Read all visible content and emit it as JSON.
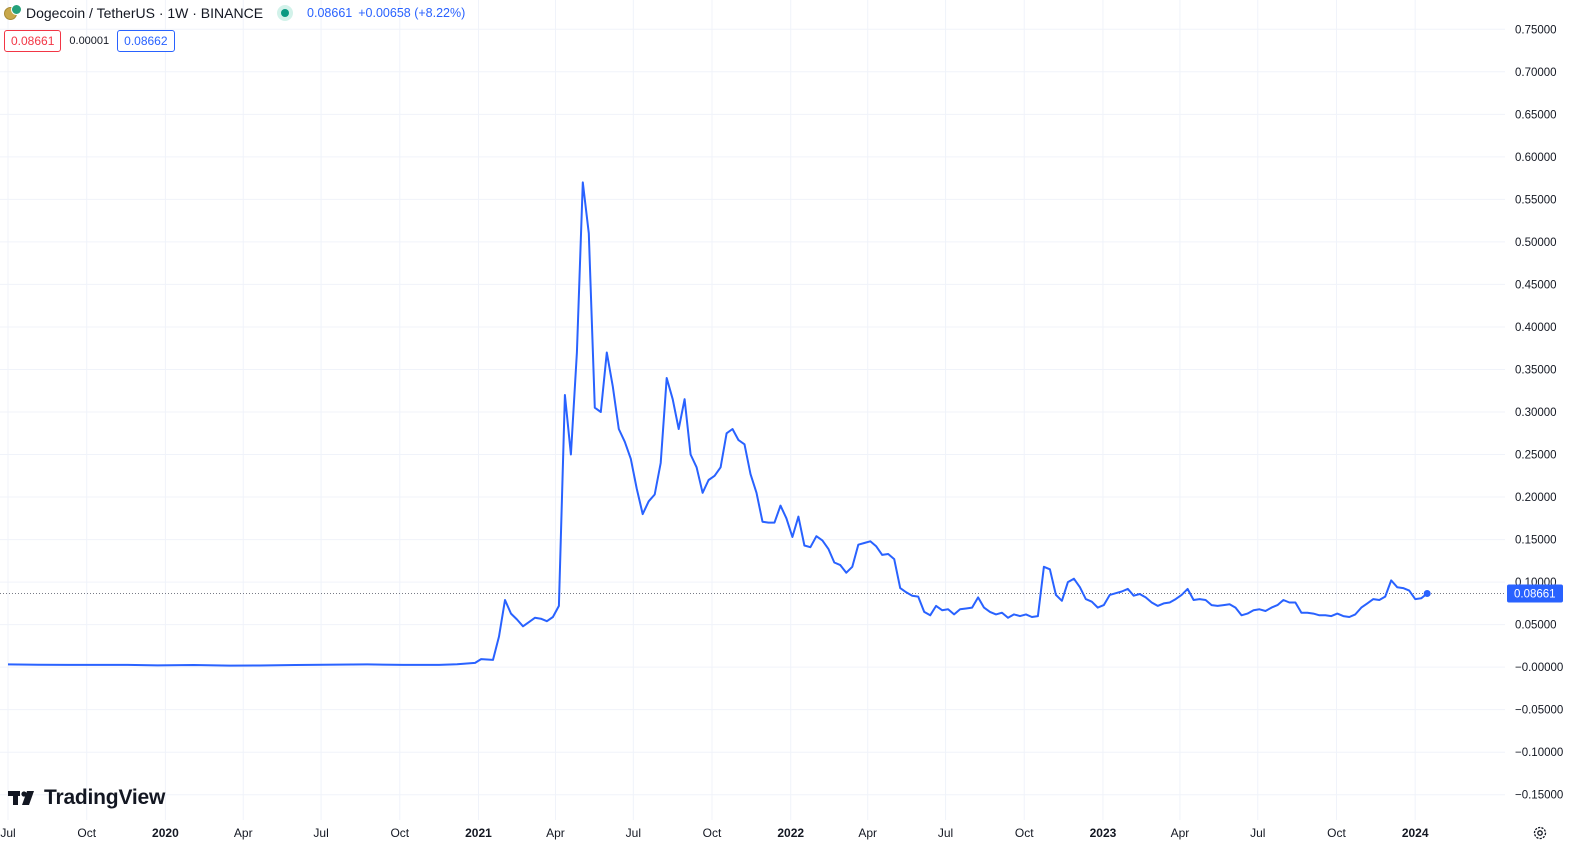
{
  "header": {
    "symbol": "Dogecoin / TetherUS · 1W · BINANCE",
    "last_value": "0.08661",
    "change": "+0.00658 (+8.22%)"
  },
  "quotes": {
    "bid": "0.08661",
    "spread": "0.00001",
    "ask": "0.08662"
  },
  "logo": {
    "text": "TradingView"
  },
  "icons": [
    "dogecoin-tether-icon",
    "market-status-icon",
    "tradingview-logo-icon",
    "settings-gear-icon"
  ],
  "colors": {
    "line": "#2962ff",
    "price_label_bg": "#2962ff",
    "bid": "#f23645",
    "ask": "#2962ff",
    "grid": "#f0f3fa"
  },
  "chart_data": {
    "type": "line",
    "title": "",
    "xlabel": "",
    "ylabel": "",
    "ylim": [
      -0.175,
      0.775
    ],
    "xlim": [
      "2019-07-01",
      "2024-04-15"
    ],
    "grid": true,
    "current_price_label": "0.08661",
    "current_price": 0.08661,
    "y_ticks": [
      {
        "value": 0.75,
        "label": "0.75000"
      },
      {
        "value": 0.7,
        "label": "0.70000"
      },
      {
        "value": 0.65,
        "label": "0.65000"
      },
      {
        "value": 0.6,
        "label": "0.60000"
      },
      {
        "value": 0.55,
        "label": "0.55000"
      },
      {
        "value": 0.5,
        "label": "0.50000"
      },
      {
        "value": 0.45,
        "label": "0.45000"
      },
      {
        "value": 0.4,
        "label": "0.40000"
      },
      {
        "value": 0.35,
        "label": "0.35000"
      },
      {
        "value": 0.3,
        "label": "0.30000"
      },
      {
        "value": 0.25,
        "label": "0.25000"
      },
      {
        "value": 0.2,
        "label": "0.20000"
      },
      {
        "value": 0.15,
        "label": "0.15000"
      },
      {
        "value": 0.1,
        "label": "0.10000"
      },
      {
        "value": 0.05,
        "label": "0.05000"
      },
      {
        "value": 0.0,
        "label": "−0.00000"
      },
      {
        "value": -0.05,
        "label": "−0.05000"
      },
      {
        "value": -0.1,
        "label": "−0.10000"
      },
      {
        "value": -0.15,
        "label": "−0.15000"
      }
    ],
    "x_ticks": [
      {
        "date": "2019-07-01",
        "label": "Jul",
        "bold": false
      },
      {
        "date": "2019-10-01",
        "label": "Oct",
        "bold": false
      },
      {
        "date": "2020-01-01",
        "label": "2020",
        "bold": true
      },
      {
        "date": "2020-04-01",
        "label": "Apr",
        "bold": false
      },
      {
        "date": "2020-07-01",
        "label": "Jul",
        "bold": false
      },
      {
        "date": "2020-10-01",
        "label": "Oct",
        "bold": false
      },
      {
        "date": "2021-01-01",
        "label": "2021",
        "bold": true
      },
      {
        "date": "2021-04-01",
        "label": "Apr",
        "bold": false
      },
      {
        "date": "2021-07-01",
        "label": "Jul",
        "bold": false
      },
      {
        "date": "2021-10-01",
        "label": "Oct",
        "bold": false
      },
      {
        "date": "2022-01-01",
        "label": "2022",
        "bold": true
      },
      {
        "date": "2022-04-01",
        "label": "Apr",
        "bold": false
      },
      {
        "date": "2022-07-01",
        "label": "Jul",
        "bold": false
      },
      {
        "date": "2022-10-01",
        "label": "Oct",
        "bold": false
      },
      {
        "date": "2023-01-01",
        "label": "2023",
        "bold": true
      },
      {
        "date": "2023-04-01",
        "label": "Apr",
        "bold": false
      },
      {
        "date": "2023-07-01",
        "label": "Jul",
        "bold": false
      },
      {
        "date": "2023-10-01",
        "label": "Oct",
        "bold": false
      },
      {
        "date": "2024-01-01",
        "label": "2024",
        "bold": true
      }
    ],
    "series": [
      {
        "points": [
          {
            "x": "2019-07-01",
            "y": 0.0032
          },
          {
            "x": "2019-08-05",
            "y": 0.0028
          },
          {
            "x": "2019-09-09",
            "y": 0.0026
          },
          {
            "x": "2019-10-14",
            "y": 0.0026
          },
          {
            "x": "2019-11-18",
            "y": 0.0027
          },
          {
            "x": "2019-12-23",
            "y": 0.0021
          },
          {
            "x": "2020-02-03",
            "y": 0.0025
          },
          {
            "x": "2020-03-16",
            "y": 0.0018
          },
          {
            "x": "2020-04-20",
            "y": 0.002
          },
          {
            "x": "2020-06-01",
            "y": 0.0025
          },
          {
            "x": "2020-07-20",
            "y": 0.003
          },
          {
            "x": "2020-08-24",
            "y": 0.0032
          },
          {
            "x": "2020-10-05",
            "y": 0.0026
          },
          {
            "x": "2020-11-16",
            "y": 0.0027
          },
          {
            "x": "2020-12-07",
            "y": 0.0035
          },
          {
            "x": "2020-12-28",
            "y": 0.005
          },
          {
            "x": "2021-01-04",
            "y": 0.0095
          },
          {
            "x": "2021-01-18",
            "y": 0.0085
          },
          {
            "x": "2021-01-25",
            "y": 0.036
          },
          {
            "x": "2021-02-01",
            "y": 0.079
          },
          {
            "x": "2021-02-08",
            "y": 0.063
          },
          {
            "x": "2021-02-15",
            "y": 0.056
          },
          {
            "x": "2021-02-22",
            "y": 0.048
          },
          {
            "x": "2021-03-01",
            "y": 0.053
          },
          {
            "x": "2021-03-08",
            "y": 0.058
          },
          {
            "x": "2021-03-15",
            "y": 0.057
          },
          {
            "x": "2021-03-22",
            "y": 0.054
          },
          {
            "x": "2021-03-29",
            "y": 0.059
          },
          {
            "x": "2021-04-05",
            "y": 0.072
          },
          {
            "x": "2021-04-12",
            "y": 0.32
          },
          {
            "x": "2021-04-19",
            "y": 0.25
          },
          {
            "x": "2021-04-26",
            "y": 0.37
          },
          {
            "x": "2021-05-03",
            "y": 0.57
          },
          {
            "x": "2021-05-10",
            "y": 0.51
          },
          {
            "x": "2021-05-17",
            "y": 0.305
          },
          {
            "x": "2021-05-24",
            "y": 0.3
          },
          {
            "x": "2021-05-31",
            "y": 0.37
          },
          {
            "x": "2021-06-07",
            "y": 0.33
          },
          {
            "x": "2021-06-14",
            "y": 0.28
          },
          {
            "x": "2021-06-21",
            "y": 0.265
          },
          {
            "x": "2021-06-28",
            "y": 0.245
          },
          {
            "x": "2021-07-05",
            "y": 0.21
          },
          {
            "x": "2021-07-12",
            "y": 0.18
          },
          {
            "x": "2021-07-19",
            "y": 0.195
          },
          {
            "x": "2021-07-26",
            "y": 0.203
          },
          {
            "x": "2021-08-02",
            "y": 0.24
          },
          {
            "x": "2021-08-09",
            "y": 0.34
          },
          {
            "x": "2021-08-16",
            "y": 0.315
          },
          {
            "x": "2021-08-23",
            "y": 0.28
          },
          {
            "x": "2021-08-30",
            "y": 0.315
          },
          {
            "x": "2021-09-06",
            "y": 0.25
          },
          {
            "x": "2021-09-13",
            "y": 0.235
          },
          {
            "x": "2021-09-20",
            "y": 0.205
          },
          {
            "x": "2021-09-27",
            "y": 0.22
          },
          {
            "x": "2021-10-04",
            "y": 0.225
          },
          {
            "x": "2021-10-11",
            "y": 0.235
          },
          {
            "x": "2021-10-18",
            "y": 0.275
          },
          {
            "x": "2021-10-25",
            "y": 0.28
          },
          {
            "x": "2021-11-01",
            "y": 0.267
          },
          {
            "x": "2021-11-08",
            "y": 0.262
          },
          {
            "x": "2021-11-15",
            "y": 0.227
          },
          {
            "x": "2021-11-22",
            "y": 0.205
          },
          {
            "x": "2021-11-29",
            "y": 0.171
          },
          {
            "x": "2021-12-06",
            "y": 0.17
          },
          {
            "x": "2021-12-13",
            "y": 0.17
          },
          {
            "x": "2021-12-20",
            "y": 0.19
          },
          {
            "x": "2021-12-27",
            "y": 0.175
          },
          {
            "x": "2022-01-03",
            "y": 0.153
          },
          {
            "x": "2022-01-10",
            "y": 0.177
          },
          {
            "x": "2022-01-17",
            "y": 0.143
          },
          {
            "x": "2022-01-24",
            "y": 0.141
          },
          {
            "x": "2022-01-31",
            "y": 0.154
          },
          {
            "x": "2022-02-07",
            "y": 0.149
          },
          {
            "x": "2022-02-14",
            "y": 0.139
          },
          {
            "x": "2022-02-21",
            "y": 0.123
          },
          {
            "x": "2022-02-28",
            "y": 0.12
          },
          {
            "x": "2022-03-07",
            "y": 0.111
          },
          {
            "x": "2022-03-14",
            "y": 0.118
          },
          {
            "x": "2022-03-21",
            "y": 0.144
          },
          {
            "x": "2022-03-28",
            "y": 0.146
          },
          {
            "x": "2022-04-04",
            "y": 0.148
          },
          {
            "x": "2022-04-11",
            "y": 0.142
          },
          {
            "x": "2022-04-18",
            "y": 0.132
          },
          {
            "x": "2022-04-25",
            "y": 0.133
          },
          {
            "x": "2022-05-02",
            "y": 0.127
          },
          {
            "x": "2022-05-09",
            "y": 0.093
          },
          {
            "x": "2022-05-16",
            "y": 0.088
          },
          {
            "x": "2022-05-23",
            "y": 0.084
          },
          {
            "x": "2022-05-30",
            "y": 0.083
          },
          {
            "x": "2022-06-06",
            "y": 0.065
          },
          {
            "x": "2022-06-13",
            "y": 0.061
          },
          {
            "x": "2022-06-20",
            "y": 0.072
          },
          {
            "x": "2022-06-27",
            "y": 0.067
          },
          {
            "x": "2022-07-04",
            "y": 0.068
          },
          {
            "x": "2022-07-11",
            "y": 0.062
          },
          {
            "x": "2022-07-18",
            "y": 0.068
          },
          {
            "x": "2022-07-25",
            "y": 0.069
          },
          {
            "x": "2022-08-01",
            "y": 0.07
          },
          {
            "x": "2022-08-08",
            "y": 0.082
          },
          {
            "x": "2022-08-15",
            "y": 0.07
          },
          {
            "x": "2022-08-22",
            "y": 0.065
          },
          {
            "x": "2022-08-29",
            "y": 0.062
          },
          {
            "x": "2022-09-05",
            "y": 0.064
          },
          {
            "x": "2022-09-12",
            "y": 0.058
          },
          {
            "x": "2022-09-19",
            "y": 0.062
          },
          {
            "x": "2022-09-26",
            "y": 0.06
          },
          {
            "x": "2022-10-03",
            "y": 0.062
          },
          {
            "x": "2022-10-10",
            "y": 0.059
          },
          {
            "x": "2022-10-17",
            "y": 0.06
          },
          {
            "x": "2022-10-24",
            "y": 0.118
          },
          {
            "x": "2022-10-31",
            "y": 0.115
          },
          {
            "x": "2022-11-07",
            "y": 0.085
          },
          {
            "x": "2022-11-14",
            "y": 0.078
          },
          {
            "x": "2022-11-21",
            "y": 0.1
          },
          {
            "x": "2022-11-28",
            "y": 0.104
          },
          {
            "x": "2022-12-05",
            "y": 0.094
          },
          {
            "x": "2022-12-12",
            "y": 0.08
          },
          {
            "x": "2022-12-19",
            "y": 0.077
          },
          {
            "x": "2022-12-26",
            "y": 0.07
          },
          {
            "x": "2023-01-02",
            "y": 0.073
          },
          {
            "x": "2023-01-09",
            "y": 0.085
          },
          {
            "x": "2023-01-16",
            "y": 0.087
          },
          {
            "x": "2023-01-23",
            "y": 0.089
          },
          {
            "x": "2023-01-30",
            "y": 0.092
          },
          {
            "x": "2023-02-06",
            "y": 0.084
          },
          {
            "x": "2023-02-13",
            "y": 0.086
          },
          {
            "x": "2023-02-20",
            "y": 0.082
          },
          {
            "x": "2023-02-27",
            "y": 0.076
          },
          {
            "x": "2023-03-06",
            "y": 0.072
          },
          {
            "x": "2023-03-13",
            "y": 0.075
          },
          {
            "x": "2023-03-20",
            "y": 0.076
          },
          {
            "x": "2023-03-27",
            "y": 0.08
          },
          {
            "x": "2023-04-03",
            "y": 0.085
          },
          {
            "x": "2023-04-10",
            "y": 0.092
          },
          {
            "x": "2023-04-17",
            "y": 0.079
          },
          {
            "x": "2023-04-24",
            "y": 0.08
          },
          {
            "x": "2023-05-01",
            "y": 0.079
          },
          {
            "x": "2023-05-08",
            "y": 0.073
          },
          {
            "x": "2023-05-15",
            "y": 0.072
          },
          {
            "x": "2023-05-22",
            "y": 0.073
          },
          {
            "x": "2023-05-29",
            "y": 0.074
          },
          {
            "x": "2023-06-05",
            "y": 0.07
          },
          {
            "x": "2023-06-12",
            "y": 0.061
          },
          {
            "x": "2023-06-19",
            "y": 0.063
          },
          {
            "x": "2023-06-26",
            "y": 0.067
          },
          {
            "x": "2023-07-03",
            "y": 0.068
          },
          {
            "x": "2023-07-10",
            "y": 0.066
          },
          {
            "x": "2023-07-17",
            "y": 0.07
          },
          {
            "x": "2023-07-24",
            "y": 0.073
          },
          {
            "x": "2023-07-31",
            "y": 0.079
          },
          {
            "x": "2023-08-07",
            "y": 0.076
          },
          {
            "x": "2023-08-14",
            "y": 0.076
          },
          {
            "x": "2023-08-21",
            "y": 0.064
          },
          {
            "x": "2023-08-28",
            "y": 0.064
          },
          {
            "x": "2023-09-04",
            "y": 0.063
          },
          {
            "x": "2023-09-11",
            "y": 0.061
          },
          {
            "x": "2023-09-18",
            "y": 0.061
          },
          {
            "x": "2023-09-25",
            "y": 0.06
          },
          {
            "x": "2023-10-02",
            "y": 0.063
          },
          {
            "x": "2023-10-09",
            "y": 0.06
          },
          {
            "x": "2023-10-16",
            "y": 0.059
          },
          {
            "x": "2023-10-23",
            "y": 0.062
          },
          {
            "x": "2023-10-30",
            "y": 0.07
          },
          {
            "x": "2023-11-06",
            "y": 0.075
          },
          {
            "x": "2023-11-13",
            "y": 0.08
          },
          {
            "x": "2023-11-20",
            "y": 0.079
          },
          {
            "x": "2023-11-27",
            "y": 0.083
          },
          {
            "x": "2023-12-04",
            "y": 0.102
          },
          {
            "x": "2023-12-11",
            "y": 0.094
          },
          {
            "x": "2023-12-18",
            "y": 0.093
          },
          {
            "x": "2023-12-25",
            "y": 0.09
          },
          {
            "x": "2024-01-01",
            "y": 0.08
          },
          {
            "x": "2024-01-08",
            "y": 0.081
          },
          {
            "x": "2024-01-15",
            "y": 0.08661
          }
        ]
      }
    ]
  }
}
